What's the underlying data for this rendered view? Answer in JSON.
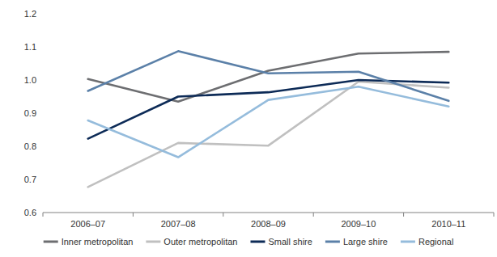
{
  "chart_data": {
    "type": "line",
    "categories": [
      "2006–07",
      "2007–08",
      "2008–09",
      "2009–10",
      "2010–11"
    ],
    "series": [
      {
        "name": "Inner metropolitan",
        "color": "#6d6e71",
        "values": [
          1.003,
          0.935,
          1.028,
          1.08,
          1.085
        ]
      },
      {
        "name": "Outer metropolitan",
        "color": "#c0c0c0",
        "values": [
          0.677,
          0.81,
          0.802,
          0.995,
          0.977
        ]
      },
      {
        "name": "Small shire",
        "color": "#0d2b57",
        "values": [
          0.823,
          0.95,
          0.963,
          1.0,
          0.992
        ]
      },
      {
        "name": "Large shire",
        "color": "#5b80a8",
        "values": [
          0.967,
          1.087,
          1.02,
          1.025,
          0.937
        ]
      },
      {
        "name": "Regional",
        "color": "#95bcdc",
        "values": [
          0.878,
          0.767,
          0.94,
          0.98,
          0.92
        ]
      }
    ],
    "ylim": [
      0.6,
      1.2
    ],
    "yticks": [
      0.6,
      0.7,
      0.8,
      0.9,
      {
        "value": 1,
        "label": "1.0"
      },
      1.1,
      1.2
    ],
    "grid": false,
    "legend": "bottom"
  }
}
